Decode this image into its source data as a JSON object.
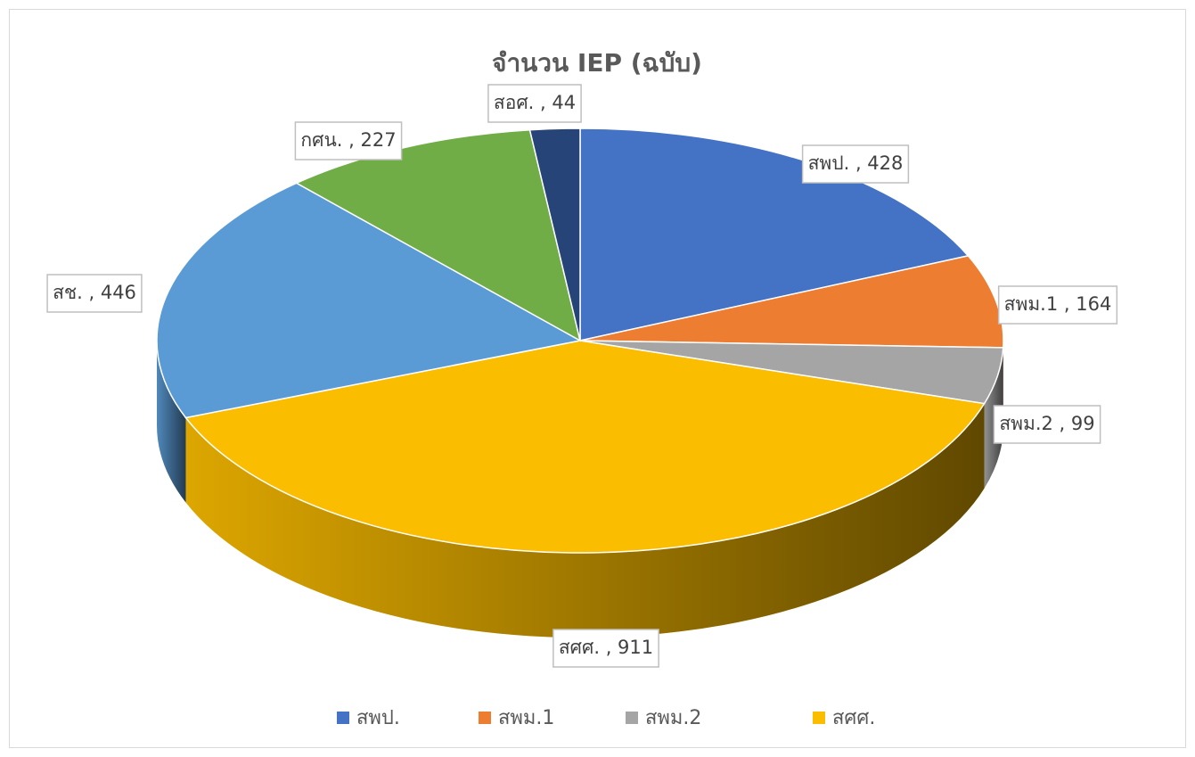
{
  "chart_data": {
    "type": "pie3d",
    "title": "จำนวน IEP (ฉบับ)",
    "categories": [
      "สพป.",
      "สพม.1",
      "สพม.2",
      "สศศ.",
      "สช.",
      "กศน.",
      "สอศ."
    ],
    "values": [
      428,
      164,
      99,
      911,
      446,
      227,
      44
    ],
    "value_labels": [
      "สพป. , 428",
      "สพม.1 , 164",
      "สพม.2 , 99",
      "สศศ. , 911",
      "สช. , 446",
      "กศน. , 227",
      "สอศ. , 44"
    ],
    "colors": [
      "#4472c4",
      "#ed7d31",
      "#a5a5a5",
      "#fbbd00",
      "#5b9bd5",
      "#70ad47",
      "#264478"
    ],
    "legend": [
      "สพป.",
      "สพม.1",
      "สพม.2",
      "สศศ."
    ]
  }
}
